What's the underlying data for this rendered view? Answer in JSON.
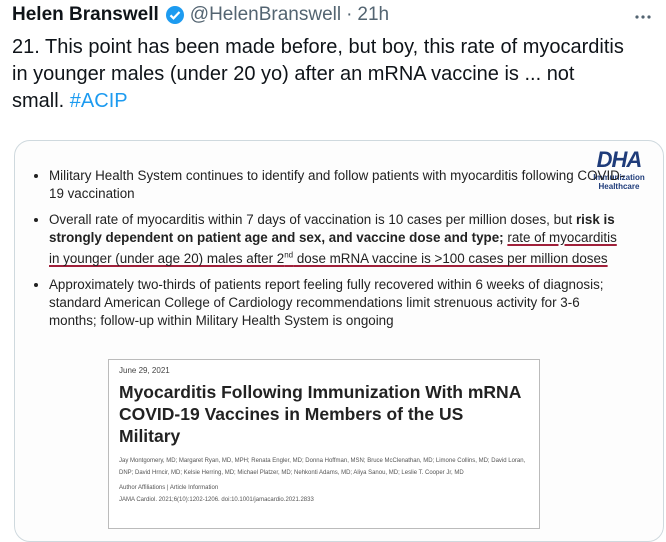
{
  "tweet": {
    "name": "Helen Branswell",
    "handle": "@HelenBranswell",
    "separator": "·",
    "time": "21h",
    "text": "21. This point has been made before, but boy, this rate of myocarditis in younger males (under 20 yo) after an mRNA vaccine is ... not small. ",
    "hashtag": "#ACIP"
  },
  "slide": {
    "logo": {
      "title": "DHA",
      "subtitle": "Immunization Healthcare"
    },
    "bullets": [
      {
        "text": "Military Health System continues to identify and follow patients with myocarditis following COVID-19 vaccination"
      },
      {
        "text": "Overall rate of myocarditis within 7 days of vaccination is 10 cases per million doses, but ",
        "bold": "risk is strongly dependent on patient age and sex, and vaccine dose and type;",
        "underlined_start": "rate of myocarditis in younger (under age 20) males after 2",
        "superscript": "nd",
        "underlined_end": " dose mRNA vaccine is >100 cases per million doses"
      },
      {
        "text": "Approximately two-thirds of patients report feeling fully recovered within 6 weeks of diagnosis; standard American College of Cardiology recommendations limit strenuous activity for 3-6 months; follow-up within Military Health System is ongoing"
      }
    ],
    "paper": {
      "date": "June 29, 2021",
      "title": "Myocarditis Following Immunization With mRNA COVID-19 Vaccines in Members of the US Military",
      "authors": "Jay Montgomery, MD; Margaret Ryan, MD, MPH; Renata Engler, MD; Donna Hoffman, MSN; Bruce McClenathan, MD; Limone Collins, MD; David Loran, DNP; David Hrncir, MD; Kelsie Herring, MD; Michael Platzer, MD; Nehkonti Adams, MD; Aliya Sanou, MD; Leslie T. Cooper Jr, MD",
      "links": "Author Affiliations | Article Information",
      "citation": "JAMA Cardiol. 2021;6(10):1202-1206. doi:10.1001/jamacardio.2021.2833"
    }
  }
}
